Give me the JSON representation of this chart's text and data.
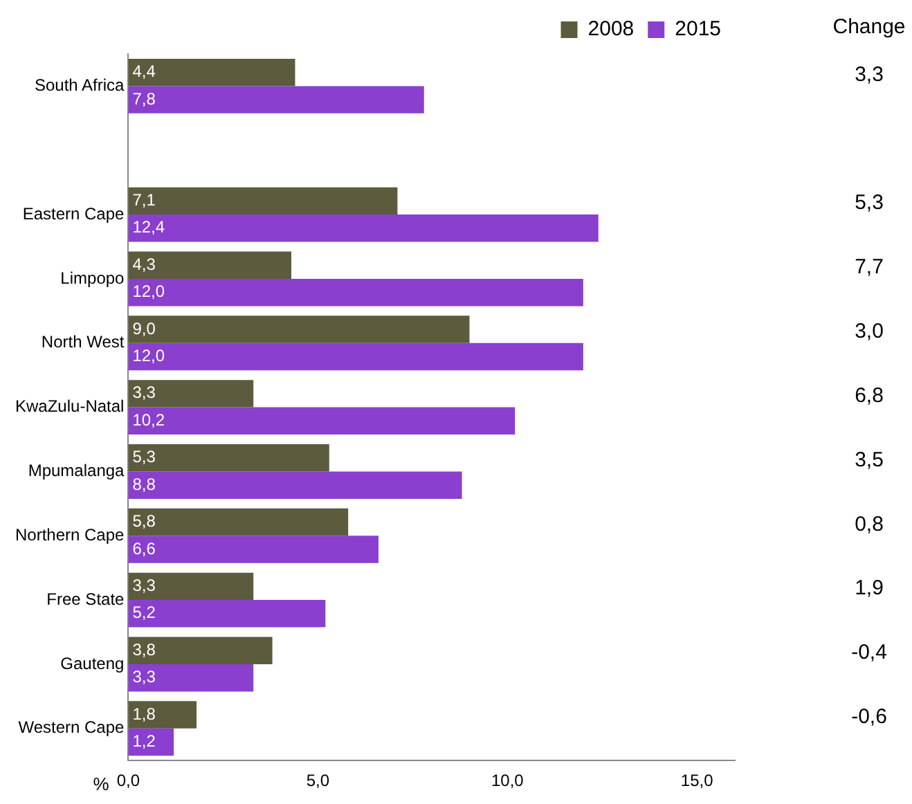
{
  "chart_data": {
    "type": "bar",
    "orientation": "horizontal",
    "xlabel": "%",
    "categories": [
      "South Africa",
      null,
      "Eastern Cape",
      "Limpopo",
      "North West",
      "KwaZulu-Natal",
      "Mpumalanga",
      "Northern Cape",
      "Free State",
      "Gauteng",
      "Western Cape"
    ],
    "series": [
      {
        "name": "2008",
        "color": "#5c5b3d",
        "values": [
          4.4,
          null,
          7.1,
          4.3,
          9.0,
          3.3,
          5.3,
          5.8,
          3.3,
          3.8,
          1.8
        ],
        "value_labels": [
          "4,4",
          null,
          "7,1",
          "4,3",
          "9,0",
          "3,3",
          "5,3",
          "5,8",
          "3,3",
          "3,8",
          "1,8"
        ]
      },
      {
        "name": "2015",
        "color": "#8a3fcf",
        "values": [
          7.8,
          null,
          12.4,
          12.0,
          12.0,
          10.2,
          8.8,
          6.6,
          5.2,
          3.3,
          1.2
        ],
        "value_labels": [
          "7,8",
          null,
          "12,4",
          "12,0",
          "12,0",
          "10,2",
          "8,8",
          "6,6",
          "5,2",
          "3,3",
          "1,2"
        ]
      }
    ],
    "xlim": [
      0,
      16
    ],
    "xticks": [
      {
        "value": 0,
        "label": "0,0"
      },
      {
        "value": 5,
        "label": "5,0"
      },
      {
        "value": 10,
        "label": "10,0"
      },
      {
        "value": 15,
        "label": "15,0"
      }
    ],
    "grid": false,
    "legend": "top right",
    "annotations": [
      "Change",
      "3,3",
      "5,3",
      "7,7",
      "3,0",
      "6,8",
      "3,5",
      "0,8",
      "1,9",
      "-0,4",
      "-0,6"
    ]
  }
}
